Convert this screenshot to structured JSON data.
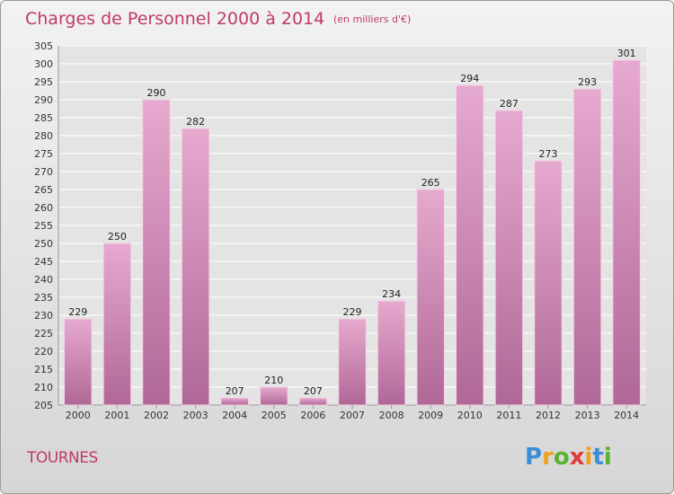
{
  "chart_data": {
    "type": "bar",
    "title": "Charges de Personnel 2000 à 2014",
    "subtitle": "(en milliers d'€)",
    "categories": [
      "2000",
      "2001",
      "2002",
      "2003",
      "2004",
      "2005",
      "2006",
      "2007",
      "2008",
      "2009",
      "2010",
      "2011",
      "2012",
      "2013",
      "2014"
    ],
    "values": [
      229,
      250,
      290,
      282,
      207,
      210,
      207,
      229,
      234,
      265,
      294,
      287,
      273,
      293,
      301
    ],
    "ylim": [
      205,
      305
    ],
    "ytick_step": 5,
    "grid": true,
    "bar_color": "#d58fbb"
  },
  "commune": "TOURNES",
  "logo": {
    "letters": [
      "P",
      "r",
      "o",
      "x",
      "i",
      "t",
      "i"
    ],
    "colors": [
      "#3a8ed8",
      "#f0a020",
      "#5bb030",
      "#e03a3a",
      "#f0a020",
      "#3a8ed8",
      "#5bb030"
    ]
  }
}
